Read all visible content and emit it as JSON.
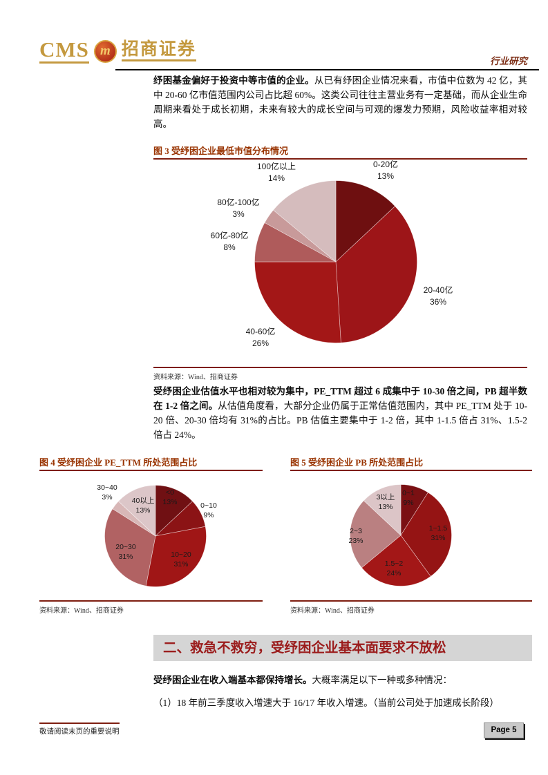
{
  "header": {
    "logo_cms": "CMS",
    "logo_m": "m",
    "logo_zh": "招商证券",
    "right_label": "行业研究"
  },
  "paragraphs": {
    "p1_bold": "纾困基金偏好于投资中等市值的企业。",
    "p1_rest": "从已有纾困企业情况来看，市值中位数为 42 亿，其中 20-60 亿市值范围内公司占比超 60%。这类公司往往主营业务有一定基础，而从企业生命周期来看处于成长初期，未来有较大的成长空间与可观的爆发力预期，风险收益率相对较高。",
    "p2_bold": "受纾困企业估值水平也相对较为集中，PE_TTM 超过 6 成集中于 10-30 倍之间，PB 超半数在 1-2 倍之间。",
    "p2_rest": "从估值角度看，大部分企业仍属于正常估值范围内，其中 PE_TTM 处于 10-20 倍、20-30 倍均有 31%的占比。PB 估值主要集中于 1-2 倍，其中 1-1.5 倍占 31%、1.5-2 倍占 24%。",
    "p3_bold": "受纾困企业在收入端基本都保持增长。",
    "p3_rest": "大概率满足以下一种或多种情况：",
    "p4": "（1）18 年前三季度收入增速大于 16/17 年收入增速。（当前公司处于加速成长阶段）"
  },
  "section_heading": "二、救急不救穷，受纾困企业基本面要求不放松",
  "footer": {
    "disclaimer": "敬请阅读末页的重要说明",
    "page": "Page 5"
  },
  "chart_data": [
    {
      "id": "market-cap-distribution",
      "type": "pie",
      "title": "图 3 受纾困企业最低市值分布情况",
      "source": "资料来源：Wind、招商证券",
      "legend_position": "none",
      "slices": [
        {
          "name": "0-20亿",
          "value": 13,
          "pct": "13%",
          "color": "#6E0F10"
        },
        {
          "name": "20-40亿",
          "value": 36,
          "pct": "36%",
          "color": "#9D1518"
        },
        {
          "name": "40-60亿",
          "value": 26,
          "pct": "26%",
          "color": "#A31717"
        },
        {
          "name": "60亿-80亿",
          "value": 8,
          "pct": "8%",
          "color": "#AF5B5B"
        },
        {
          "name": "80亿-100亿",
          "value": 3,
          "pct": "3%",
          "color": "#C89A9A"
        },
        {
          "name": "100亿以上",
          "value": 14,
          "pct": "14%",
          "color": "#D5BCBD"
        }
      ]
    },
    {
      "id": "pe-ttm-range",
      "type": "pie",
      "title": "图 4 受纾困企业 PE_TTM 所处范围占比",
      "source": "资料来源：Wind、招商证券",
      "legend_position": "none",
      "slices": [
        {
          "name": "<0",
          "value": 13,
          "pct": "13%",
          "color": "#701013"
        },
        {
          "name": "0~10",
          "value": 9,
          "pct": "9%",
          "color": "#8B1315"
        },
        {
          "name": "10~20",
          "value": 31,
          "pct": "31%",
          "color": "#A01616"
        },
        {
          "name": "20~30",
          "value": 31,
          "pct": "31%",
          "color": "#B16263"
        },
        {
          "name": "30~40",
          "value": 3,
          "pct": "3%",
          "color": "#D8B7B7"
        },
        {
          "name": "40以上",
          "value": 13,
          "pct": "13%",
          "color": "#DCC6C8"
        }
      ]
    },
    {
      "id": "pb-range",
      "type": "pie",
      "title": "图 5 受纾困企业 PB 所处范围占比",
      "source": "资料来源：Wind、招商证券",
      "legend_position": "none",
      "slices": [
        {
          "name": "0~1",
          "value": 9,
          "pct": "9%",
          "color": "#7A1013"
        },
        {
          "name": "1~1.5",
          "value": 31,
          "pct": "31%",
          "color": "#951414"
        },
        {
          "name": "1.5~2",
          "value": 24,
          "pct": "24%",
          "color": "#A31717"
        },
        {
          "name": "2~3",
          "value": 23,
          "pct": "23%",
          "color": "#BA8081"
        },
        {
          "name": "3以上",
          "value": 13,
          "pct": "13%",
          "color": "#DCC5C7"
        }
      ]
    }
  ]
}
